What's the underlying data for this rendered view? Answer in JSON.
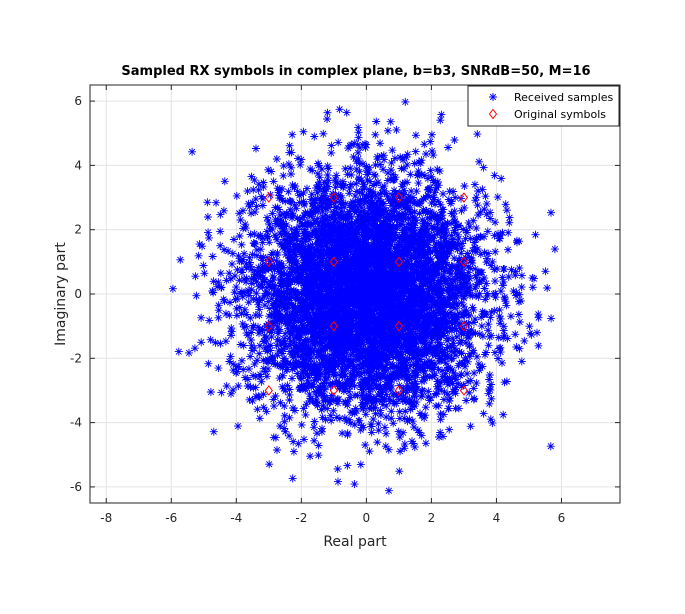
{
  "chart_data": {
    "type": "scatter",
    "title": "Sampled RX symbols in complex plane, b=b3, SNRdB=50, M=16",
    "xlabel": "Real part",
    "ylabel": "Imaginary part",
    "xlim": [
      -8.5,
      7.8
    ],
    "ylim": [
      -6.5,
      6.5
    ],
    "xticks": [
      -8,
      -6,
      -4,
      -2,
      0,
      2,
      4,
      6
    ],
    "yticks": [
      -6,
      -4,
      -2,
      0,
      2,
      4,
      6
    ],
    "grid": true,
    "legend_position": "top-right",
    "series": [
      {
        "name": "Received samples",
        "marker": "asterisk",
        "color": "#0000ff",
        "distribution": "gaussian-cloud",
        "approx_count": 6000,
        "center": [
          0,
          0
        ],
        "std": [
          1.8,
          1.8
        ],
        "extent_x": [
          -6.8,
          6.2
        ],
        "extent_y": [
          -6.4,
          6.3
        ]
      },
      {
        "name": "Original symbols",
        "marker": "diamond",
        "color": "#ff0000",
        "points": [
          [
            -3,
            1
          ],
          [
            -1,
            1
          ],
          [
            1,
            1
          ],
          [
            3,
            1
          ],
          [
            -3,
            -1
          ],
          [
            -1,
            -1
          ],
          [
            1,
            -1
          ],
          [
            3,
            -1
          ],
          [
            -3,
            3
          ],
          [
            -1,
            3
          ],
          [
            1,
            3
          ],
          [
            3,
            3
          ],
          [
            -3,
            -3
          ],
          [
            -1,
            -3
          ],
          [
            1,
            -3
          ],
          [
            3,
            -3
          ]
        ]
      }
    ]
  }
}
